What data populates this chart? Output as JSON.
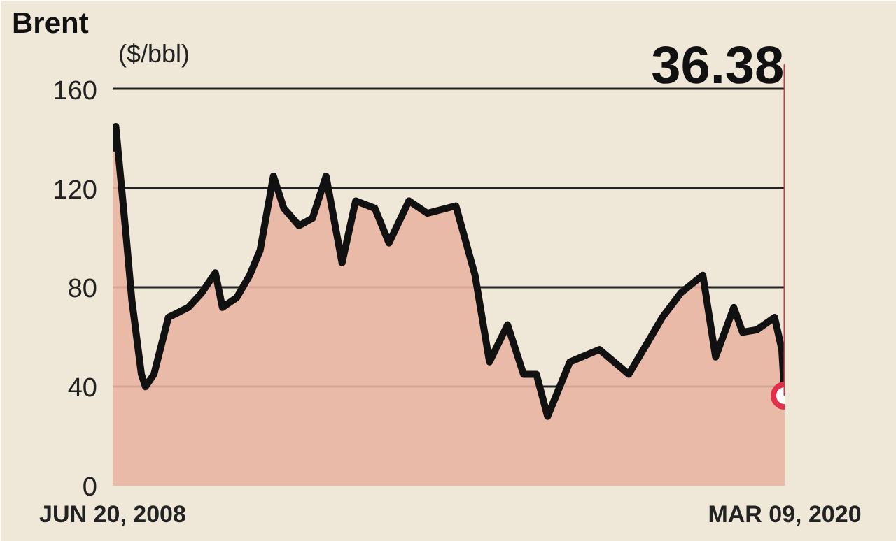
{
  "chart_data": {
    "type": "area",
    "title": "Brent",
    "ylabel": "($/bbl)",
    "x": [
      "2008-06-20",
      "2008-07-10",
      "2008-09-15",
      "2008-10-20",
      "2008-12-20",
      "2009-01-15",
      "2009-03-10",
      "2009-06-10",
      "2009-10-15",
      "2010-01-10",
      "2010-04-05",
      "2010-05-20",
      "2010-08-20",
      "2010-11-10",
      "2011-01-15",
      "2011-04-10",
      "2011-06-15",
      "2011-09-20",
      "2011-12-15",
      "2012-03-10",
      "2012-06-20",
      "2012-09-15",
      "2013-01-15",
      "2013-04-15",
      "2013-08-20",
      "2013-12-15",
      "2014-06-15",
      "2014-10-15",
      "2015-01-15",
      "2015-05-10",
      "2015-08-20",
      "2015-11-10",
      "2016-01-20",
      "2016-06-10",
      "2016-12-15",
      "2017-06-20",
      "2017-10-20",
      "2018-01-20",
      "2018-05-20",
      "2018-10-05",
      "2018-12-25",
      "2019-04-20",
      "2019-06-15",
      "2019-09-15",
      "2020-01-05",
      "2020-02-20",
      "2020-03-09"
    ],
    "series": [
      {
        "color": "#e9b5a3",
        "values": [
          135,
          145,
          100,
          75,
          45,
          40,
          45,
          68,
          72,
          78,
          86,
          72,
          76,
          85,
          95,
          125,
          112,
          105,
          108,
          125,
          90,
          115,
          112,
          98,
          115,
          110,
          113,
          85,
          50,
          65,
          45,
          45,
          28,
          50,
          55,
          45,
          58,
          68,
          78,
          85,
          52,
          72,
          62,
          63,
          68,
          55,
          36.38
        ]
      }
    ],
    "ylim": [
      0,
      180
    ],
    "yticks": [
      0,
      40,
      80,
      120,
      160
    ],
    "xlim": [
      "2008-06-20",
      "2020-03-09"
    ],
    "xticks": [
      {
        "value": "2008-06-20",
        "label": "JUN 20, 2008"
      },
      {
        "value": "2020-03-09",
        "label": "MAR 09, 2020"
      }
    ],
    "grid": "y",
    "annotations": [
      "36.38"
    ]
  }
}
